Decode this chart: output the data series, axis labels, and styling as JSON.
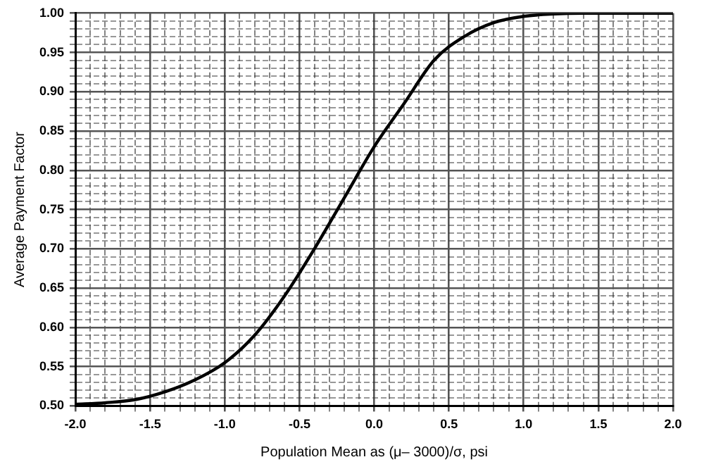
{
  "chart_data": {
    "type": "line",
    "xlabel": "Population Mean as (μ– 3000)/σ, psi",
    "ylabel": "Average Payment Factor",
    "x": [
      -2.0,
      -1.8,
      -1.6,
      -1.4,
      -1.2,
      -1.0,
      -0.8,
      -0.6,
      -0.4,
      -0.2,
      0.0,
      0.2,
      0.4,
      0.6,
      0.8,
      1.0,
      1.2,
      1.4,
      1.6,
      1.8,
      2.0
    ],
    "series": [
      {
        "color": "#000000",
        "values": [
          0.502,
          0.504,
          0.508,
          0.518,
          0.533,
          0.555,
          0.59,
          0.64,
          0.7,
          0.765,
          0.83,
          0.885,
          0.94,
          0.97,
          0.988,
          0.996,
          0.999,
          1.0,
          1.0,
          1.0,
          1.0
        ]
      }
    ],
    "xlim": [
      -2.0,
      2.0
    ],
    "ylim": [
      0.5,
      1.0
    ],
    "xticks": [
      {
        "value": -2.0,
        "label": "-2.0"
      },
      {
        "value": -1.9,
        "label": null
      },
      {
        "value": -1.8,
        "label": null
      },
      {
        "value": -1.7,
        "label": null
      },
      {
        "value": -1.6,
        "label": null
      },
      {
        "value": -1.5,
        "label": "-1.5"
      },
      {
        "value": -1.4,
        "label": null
      },
      {
        "value": -1.3,
        "label": null
      },
      {
        "value": -1.2,
        "label": null
      },
      {
        "value": -1.1,
        "label": null
      },
      {
        "value": -1.0,
        "label": "-1.0"
      },
      {
        "value": -0.9,
        "label": null
      },
      {
        "value": -0.8,
        "label": null
      },
      {
        "value": -0.7,
        "label": null
      },
      {
        "value": -0.6,
        "label": null
      },
      {
        "value": -0.5,
        "label": "-0.5"
      },
      {
        "value": -0.4,
        "label": null
      },
      {
        "value": -0.3,
        "label": null
      },
      {
        "value": -0.2,
        "label": null
      },
      {
        "value": -0.1,
        "label": null
      },
      {
        "value": 0.0,
        "label": "0.0"
      },
      {
        "value": 0.1,
        "label": null
      },
      {
        "value": 0.2,
        "label": null
      },
      {
        "value": 0.3,
        "label": null
      },
      {
        "value": 0.4,
        "label": null
      },
      {
        "value": 0.5,
        "label": "0.5"
      },
      {
        "value": 0.6,
        "label": null
      },
      {
        "value": 0.7,
        "label": null
      },
      {
        "value": 0.8,
        "label": null
      },
      {
        "value": 0.9,
        "label": null
      },
      {
        "value": 1.0,
        "label": "1.0"
      },
      {
        "value": 1.1,
        "label": null
      },
      {
        "value": 1.2,
        "label": null
      },
      {
        "value": 1.3,
        "label": null
      },
      {
        "value": 1.4,
        "label": null
      },
      {
        "value": 1.5,
        "label": "1.5"
      },
      {
        "value": 1.6,
        "label": null
      },
      {
        "value": 1.7,
        "label": null
      },
      {
        "value": 1.8,
        "label": null
      },
      {
        "value": 1.9,
        "label": null
      },
      {
        "value": 2.0,
        "label": "2.0"
      }
    ],
    "yticks": [
      {
        "value": 0.5,
        "label": "0.50"
      },
      {
        "value": 0.51,
        "label": null
      },
      {
        "value": 0.52,
        "label": null
      },
      {
        "value": 0.53,
        "label": null
      },
      {
        "value": 0.54,
        "label": null
      },
      {
        "value": 0.55,
        "label": "0.55"
      },
      {
        "value": 0.56,
        "label": null
      },
      {
        "value": 0.57,
        "label": null
      },
      {
        "value": 0.58,
        "label": null
      },
      {
        "value": 0.59,
        "label": null
      },
      {
        "value": 0.6,
        "label": "0.60"
      },
      {
        "value": 0.61,
        "label": null
      },
      {
        "value": 0.62,
        "label": null
      },
      {
        "value": 0.63,
        "label": null
      },
      {
        "value": 0.64,
        "label": null
      },
      {
        "value": 0.65,
        "label": "0.65"
      },
      {
        "value": 0.66,
        "label": null
      },
      {
        "value": 0.67,
        "label": null
      },
      {
        "value": 0.68,
        "label": null
      },
      {
        "value": 0.69,
        "label": null
      },
      {
        "value": 0.7,
        "label": "0.70"
      },
      {
        "value": 0.71,
        "label": null
      },
      {
        "value": 0.72,
        "label": null
      },
      {
        "value": 0.73,
        "label": null
      },
      {
        "value": 0.74,
        "label": null
      },
      {
        "value": 0.75,
        "label": "0.75"
      },
      {
        "value": 0.76,
        "label": null
      },
      {
        "value": 0.77,
        "label": null
      },
      {
        "value": 0.78,
        "label": null
      },
      {
        "value": 0.79,
        "label": null
      },
      {
        "value": 0.8,
        "label": "0.80"
      },
      {
        "value": 0.81,
        "label": null
      },
      {
        "value": 0.82,
        "label": null
      },
      {
        "value": 0.83,
        "label": null
      },
      {
        "value": 0.84,
        "label": null
      },
      {
        "value": 0.85,
        "label": "0.85"
      },
      {
        "value": 0.86,
        "label": null
      },
      {
        "value": 0.87,
        "label": null
      },
      {
        "value": 0.88,
        "label": null
      },
      {
        "value": 0.89,
        "label": null
      },
      {
        "value": 0.9,
        "label": "0.90"
      },
      {
        "value": 0.91,
        "label": null
      },
      {
        "value": 0.92,
        "label": null
      },
      {
        "value": 0.93,
        "label": null
      },
      {
        "value": 0.94,
        "label": null
      },
      {
        "value": 0.95,
        "label": "0.95"
      },
      {
        "value": 0.96,
        "label": null
      },
      {
        "value": 0.97,
        "label": null
      },
      {
        "value": 0.98,
        "label": null
      },
      {
        "value": 0.99,
        "label": null
      },
      {
        "value": 1.0,
        "label": "1.00"
      }
    ],
    "grid": true,
    "legend": false,
    "marker": "none",
    "line_style": "solid"
  }
}
